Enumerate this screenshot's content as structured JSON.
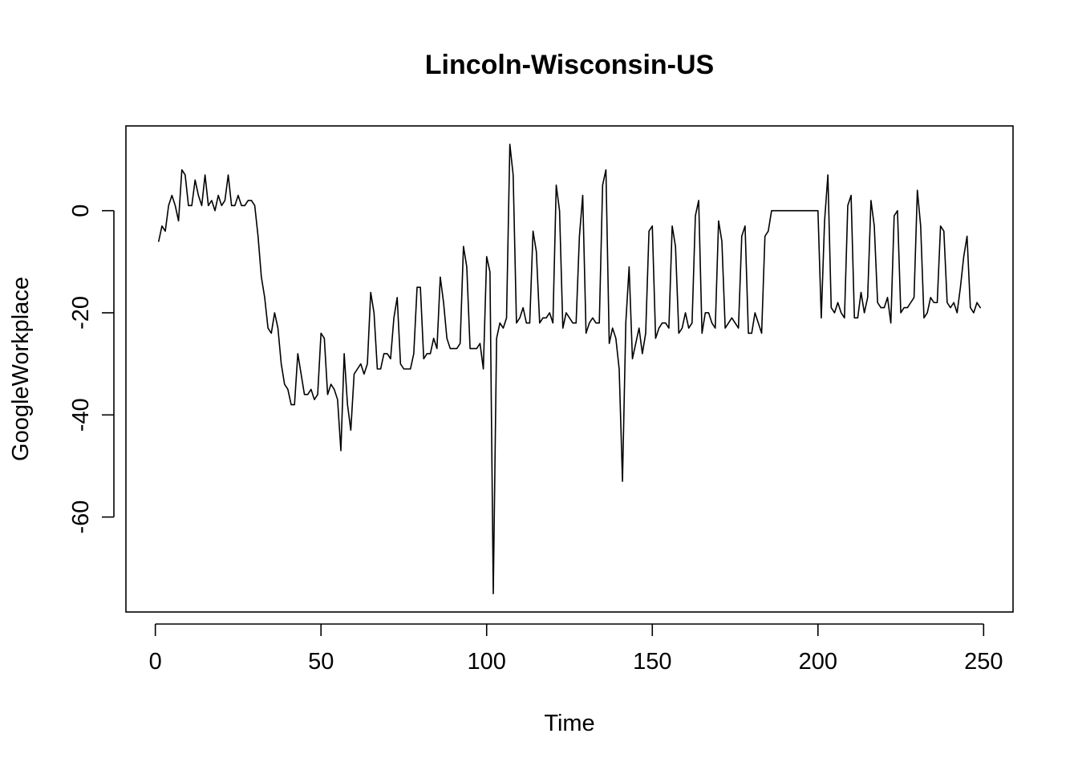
{
  "chart_data": {
    "type": "line",
    "title": "Lincoln-Wisconsin-US",
    "xlabel": "Time",
    "ylabel": "GoogleWorkplace",
    "xlim": [
      0,
      250
    ],
    "ylim": [
      -78,
      17
    ],
    "x_ticks": [
      0,
      50,
      100,
      150,
      200,
      250
    ],
    "y_ticks": [
      0,
      -20,
      -40,
      -60
    ],
    "grid": false,
    "line_color": "#000000",
    "series": [
      {
        "values": [
          -6,
          -3,
          -4,
          1,
          3,
          1,
          -2,
          8,
          7,
          1,
          1,
          6,
          3,
          1,
          7,
          1,
          2,
          0,
          3,
          1,
          2,
          7,
          1,
          1,
          3,
          1,
          1,
          2,
          2,
          1,
          -5,
          -13,
          -17,
          -23,
          -24,
          -20,
          -23,
          -30,
          -34,
          -35,
          -38,
          -38,
          -28,
          -32,
          -36,
          -36,
          -35,
          -37,
          -36,
          -24,
          -25,
          -36,
          -34,
          -35,
          -37,
          -47,
          -28,
          -38,
          -43,
          -32,
          -31,
          -30,
          -32,
          -30,
          -16,
          -20,
          -31,
          -31,
          -28,
          -28,
          -29,
          -21,
          -17,
          -30,
          -31,
          -31,
          -31,
          -28,
          -15,
          -15,
          -29,
          -28,
          -28,
          -25,
          -27,
          -13,
          -18,
          -25,
          -27,
          -27,
          -27,
          -26,
          -7,
          -11,
          -27,
          -27,
          -27,
          -26,
          -31,
          -9,
          -12,
          -75,
          -25,
          -22,
          -23,
          -21,
          13,
          7,
          -22,
          -21,
          -19,
          -22,
          -22,
          -4,
          -8,
          -22,
          -21,
          -21,
          -20,
          -22,
          5,
          0,
          -23,
          -20,
          -21,
          -22,
          -22,
          -5,
          3,
          -24,
          -22,
          -21,
          -22,
          -22,
          5,
          8,
          -26,
          -23,
          -25,
          -31,
          -53,
          -22,
          -11,
          -29,
          -26,
          -23,
          -28,
          -24,
          -4,
          -3,
          -25,
          -23,
          -22,
          -22,
          -23,
          -3,
          -7,
          -24,
          -23,
          -20,
          -23,
          -22,
          -1,
          2,
          -24,
          -20,
          -20,
          -22,
          -23,
          -2,
          -6,
          -23,
          -22,
          -21,
          -22,
          -23,
          -5,
          -3,
          -24,
          -24,
          -20,
          -22,
          -24,
          -5,
          -4,
          0,
          0,
          0,
          0,
          0,
          0,
          0,
          0,
          0,
          0,
          0,
          0,
          0,
          0,
          0,
          -21,
          -2,
          7,
          -19,
          -20,
          -18,
          -20,
          -21,
          1,
          3,
          -21,
          -21,
          -16,
          -20,
          -17,
          2,
          -3,
          -18,
          -19,
          -19,
          -17,
          -22,
          -1,
          0,
          -20,
          -19,
          -19,
          -18,
          -17,
          4,
          -3,
          -21,
          -20,
          -17,
          -18,
          -18,
          -3,
          -4,
          -18,
          -19,
          -18,
          -20,
          -15,
          -9,
          -5,
          -19,
          -20,
          -18,
          -19
        ]
      }
    ]
  }
}
